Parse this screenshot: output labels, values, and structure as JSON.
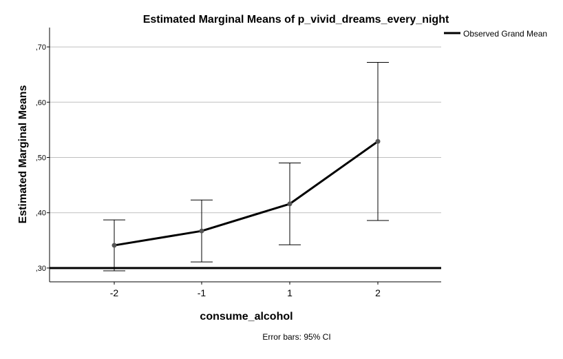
{
  "chart_data": {
    "type": "line",
    "title": "Estimated Marginal Means of p_vivid_dreams_every_night",
    "xlabel": "consume_alcohol",
    "ylabel": "Estimated Marginal Means",
    "categories": [
      "-2",
      "-1",
      "1",
      "2"
    ],
    "series": [
      {
        "name": "Estimated Marginal Means",
        "values": [
          0.341,
          0.367,
          0.416,
          0.529
        ],
        "ci_lower": [
          0.295,
          0.311,
          0.342,
          0.386
        ],
        "ci_upper": [
          0.387,
          0.423,
          0.49,
          0.672
        ]
      }
    ],
    "grand_mean": 0.3,
    "ylim": [
      0.275,
      0.735
    ],
    "yticks": [
      0.3,
      0.4,
      0.5,
      0.6,
      0.7
    ],
    "ytick_labels": [
      ",30",
      ",40",
      ",50",
      ",60",
      ",70"
    ],
    "legend": {
      "position": "top-right",
      "entries": [
        "Observed Grand Mean"
      ]
    },
    "note": "Error bars: 95% CI",
    "grid": "horizontal",
    "colors": {
      "line": "#000000",
      "point": "#555555",
      "grid": "#bfbfbf",
      "axis": "#000000"
    }
  }
}
